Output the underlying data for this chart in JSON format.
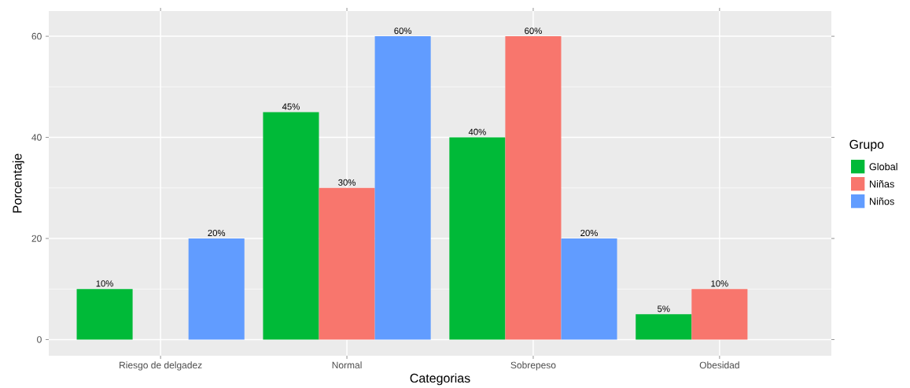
{
  "chart_data": {
    "type": "bar",
    "xlabel": "Categorias",
    "ylabel": "Porcentaje",
    "legend_title": "Grupo",
    "categories": [
      "Riesgo de delgadez",
      "Normal",
      "Sobrepeso",
      "Obesidad"
    ],
    "series": [
      {
        "name": "Global",
        "color": "#00ba38",
        "values": [
          10,
          45,
          40,
          5
        ],
        "value_labels": [
          "10%",
          "45%",
          "40%",
          "5%"
        ]
      },
      {
        "name": "Niñas",
        "color": "#f8766d",
        "values": [
          null,
          30,
          60,
          10
        ],
        "value_labels": [
          null,
          "30%",
          "60%",
          "10%"
        ]
      },
      {
        "name": "Niños",
        "color": "#619cff",
        "values": [
          20,
          60,
          20,
          null
        ],
        "value_labels": [
          "20%",
          "60%",
          "20%",
          null
        ]
      }
    ],
    "ylim": [
      -3.2,
      65
    ],
    "yticks": [
      0,
      20,
      40,
      60
    ],
    "grid": true,
    "legend": "right"
  }
}
